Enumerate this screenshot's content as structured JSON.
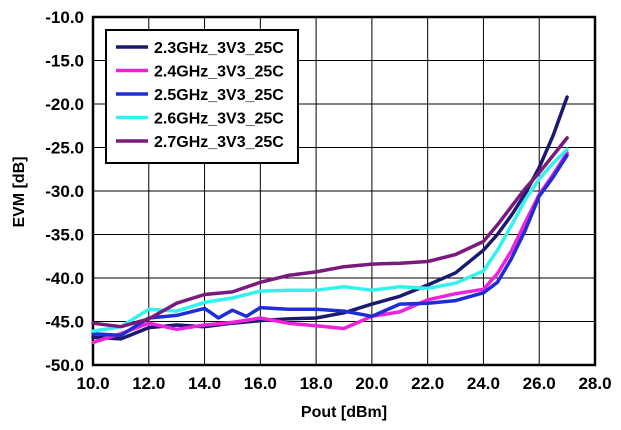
{
  "chart_data": {
    "type": "line",
    "title": "",
    "xlabel": "Pout [dBm]",
    "ylabel": "EVM [dB]",
    "xlim": [
      10.0,
      28.0
    ],
    "ylim": [
      -50.0,
      -10.0
    ],
    "x_ticks": [
      "10.0",
      "12.0",
      "14.0",
      "16.0",
      "18.0",
      "20.0",
      "22.0",
      "24.0",
      "26.0",
      "28.0"
    ],
    "y_ticks": [
      "-10.0",
      "-15.0",
      "-20.0",
      "-25.0",
      "-30.0",
      "-35.0",
      "-40.0",
      "-45.0",
      "-50.0"
    ],
    "grid": true,
    "legend_position": "top-left",
    "series": [
      {
        "name": "2.3GHz_3V3_25C",
        "color": "#1b1a6e",
        "x": [
          10,
          11,
          12,
          13,
          14,
          15,
          16,
          17,
          18,
          19,
          20,
          21,
          22,
          23,
          24,
          24.5,
          25,
          25.5,
          26,
          26.5,
          27
        ],
        "y": [
          -46.8,
          -47.0,
          -45.7,
          -45.4,
          -45.6,
          -45.2,
          -44.9,
          -44.7,
          -44.6,
          -44.0,
          -43.0,
          -42.1,
          -40.8,
          -39.4,
          -36.8,
          -35.0,
          -32.8,
          -30.3,
          -27.3,
          -23.6,
          -19.2
        ]
      },
      {
        "name": "2.4GHz_3V3_25C",
        "color": "#ee22dd",
        "x": [
          10,
          11,
          12,
          13,
          14,
          15,
          16,
          17,
          18,
          19,
          20,
          21,
          22,
          23,
          24,
          24.5,
          25,
          25.5,
          26,
          26.5,
          27
        ],
        "y": [
          -47.4,
          -46.4,
          -45.2,
          -45.9,
          -45.4,
          -45.1,
          -44.6,
          -45.2,
          -45.5,
          -45.8,
          -44.4,
          -43.9,
          -42.5,
          -41.8,
          -41.3,
          -39.5,
          -36.9,
          -33.6,
          -30.4,
          -28.1,
          -25.6
        ]
      },
      {
        "name": "2.5GHz_3V3_25C",
        "color": "#1f2ed4",
        "x": [
          10,
          11,
          12,
          13,
          14,
          14.5,
          15,
          15.5,
          16,
          17,
          18,
          19,
          20,
          21,
          22,
          23,
          24,
          24.5,
          25,
          25.5,
          26,
          26.5,
          27
        ],
        "y": [
          -46.4,
          -46.6,
          -44.6,
          -44.3,
          -43.5,
          -44.6,
          -43.7,
          -44.4,
          -43.4,
          -43.6,
          -43.6,
          -43.8,
          -44.4,
          -43.0,
          -42.9,
          -42.6,
          -41.7,
          -40.5,
          -37.8,
          -34.5,
          -30.6,
          -28.4,
          -25.9
        ]
      },
      {
        "name": "2.6GHz_3V3_25C",
        "color": "#33f2ee",
        "x": [
          10,
          11,
          12,
          13,
          14,
          15,
          16,
          17,
          18,
          19,
          20,
          21,
          22,
          23,
          24,
          24.5,
          25,
          25.5,
          26,
          26.5,
          27
        ],
        "y": [
          -46.1,
          -45.6,
          -43.6,
          -43.8,
          -42.8,
          -42.3,
          -41.5,
          -41.4,
          -41.4,
          -41.0,
          -41.4,
          -41.0,
          -41.2,
          -40.6,
          -39.2,
          -36.8,
          -34.0,
          -31.0,
          -28.6,
          -26.8,
          -25.2
        ]
      },
      {
        "name": "2.7GHz_3V3_25C",
        "color": "#7b1a7c",
        "x": [
          10,
          11,
          12,
          13,
          14,
          15,
          16,
          17,
          18,
          19,
          20,
          21,
          22,
          23,
          24,
          24.5,
          25,
          25.5,
          26,
          26.5,
          27
        ],
        "y": [
          -45.2,
          -45.6,
          -44.7,
          -42.9,
          -41.9,
          -41.6,
          -40.5,
          -39.7,
          -39.3,
          -38.7,
          -38.4,
          -38.3,
          -38.1,
          -37.3,
          -35.8,
          -33.9,
          -31.8,
          -29.7,
          -27.9,
          -25.9,
          -23.9
        ]
      }
    ]
  }
}
